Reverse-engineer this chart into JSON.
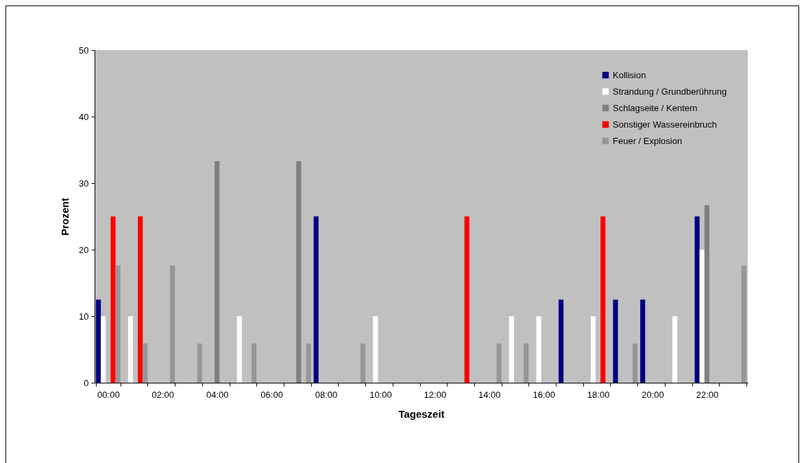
{
  "chart_data": {
    "type": "bar",
    "xlabel": "Tageszeit",
    "ylabel": "Prozent",
    "categories": [
      "00:00",
      null,
      "02:00",
      null,
      "04:00",
      null,
      "06:00",
      null,
      "08:00",
      null,
      "10:00",
      null,
      "12:00",
      null,
      "14:00",
      null,
      "16:00",
      null,
      "18:00",
      null,
      "20:00",
      null,
      "22:00",
      null
    ],
    "series": [
      {
        "name": "Kollision",
        "color": "#000080",
        "values": [
          12.5,
          null,
          null,
          null,
          null,
          null,
          null,
          null,
          25,
          null,
          null,
          null,
          null,
          null,
          null,
          null,
          null,
          12.5,
          null,
          12.5,
          12.5,
          null,
          25,
          null
        ]
      },
      {
        "name": "Strandung / Grundberührung",
        "color": "#ffffff",
        "values": [
          10,
          10,
          null,
          null,
          null,
          10,
          null,
          null,
          null,
          null,
          10,
          null,
          null,
          null,
          null,
          10,
          10,
          null,
          10,
          null,
          null,
          10,
          20,
          null
        ]
      },
      {
        "name": "Schlagseite / Kentern",
        "color": "#808080",
        "values": [
          null,
          null,
          null,
          null,
          33.3,
          null,
          null,
          33.3,
          null,
          null,
          null,
          null,
          null,
          null,
          null,
          null,
          null,
          null,
          null,
          null,
          null,
          null,
          26.7,
          null
        ]
      },
      {
        "name": "Sonstiger Wassereinbruch",
        "color": "#ff0000",
        "values": [
          25,
          25,
          null,
          null,
          null,
          null,
          null,
          null,
          null,
          null,
          null,
          null,
          null,
          25,
          null,
          null,
          null,
          null,
          25,
          null,
          null,
          null,
          null,
          null
        ]
      },
      {
        "name": "Feuer / Explosion",
        "color": "#969696",
        "values": [
          17.6,
          5.9,
          17.6,
          5.9,
          null,
          5.9,
          null,
          5.9,
          null,
          5.9,
          null,
          null,
          null,
          null,
          5.9,
          5.9,
          null,
          null,
          null,
          5.9,
          null,
          null,
          null,
          17.6
        ]
      }
    ],
    "ylim": [
      0,
      50
    ],
    "yticks": [
      0,
      10,
      20,
      30,
      40,
      50
    ],
    "grid": false,
    "legend": "top right"
  }
}
